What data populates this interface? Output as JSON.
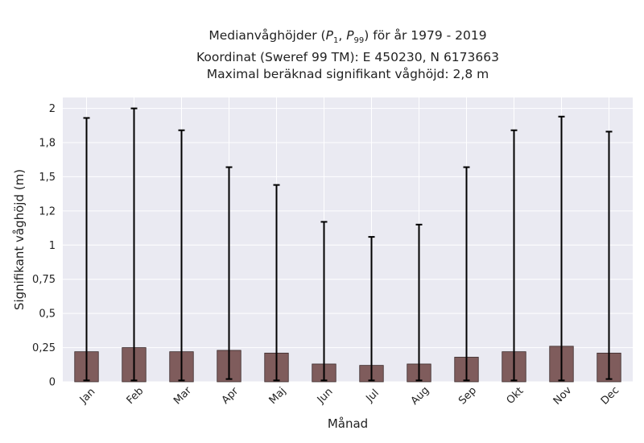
{
  "chart_data": {
    "type": "bar",
    "title_lines": [
      "Medianvåghöjder (P1, P99) för år 1979 - 2019",
      "Koordinat (Sweref 99 TM): E 450230, N 6173663",
      "Maximal beräknad signifikant våghöjd: 2,8 m"
    ],
    "title_parts": {
      "prefix": "Medianvåghöjder (",
      "p1": "P",
      "p1_sub": "1",
      "sep": ", ",
      "p99": "P",
      "p99_sub": "99",
      "suffix": ") för år 1979 - 2019"
    },
    "xlabel": "Månad",
    "ylabel": "Signifikant våghöjd (m)",
    "categories": [
      "Jan",
      "Feb",
      "Mar",
      "Apr",
      "Maj",
      "Jun",
      "Jul",
      "Aug",
      "Sep",
      "Okt",
      "Nov",
      "Dec"
    ],
    "values": [
      0.22,
      0.25,
      0.22,
      0.23,
      0.21,
      0.13,
      0.12,
      0.13,
      0.18,
      0.22,
      0.26,
      0.21
    ],
    "error_low": [
      0.01,
      0.01,
      0.01,
      0.02,
      0.01,
      0.01,
      0.01,
      0.01,
      0.01,
      0.01,
      0.01,
      0.02
    ],
    "error_high": [
      1.93,
      2.0,
      1.84,
      1.57,
      1.44,
      1.17,
      1.06,
      1.15,
      1.57,
      1.84,
      1.94,
      1.83
    ],
    "ylim": [
      0,
      2.08
    ],
    "yticks": [
      0,
      0.25,
      0.5,
      0.75,
      1.0,
      1.25,
      1.5,
      1.75,
      2.0
    ],
    "ytick_labels": [
      "0",
      "0,25",
      "0,5",
      "0,75",
      "1",
      "1,2",
      "1,5",
      "1,8",
      "2"
    ],
    "grid": true,
    "colors": {
      "bar": "#7f5c5c",
      "bar_edge": "#3a2a2a",
      "errorbar": "#000000",
      "plot_background": "#eaeaf2",
      "grid": "#ffffff"
    }
  }
}
